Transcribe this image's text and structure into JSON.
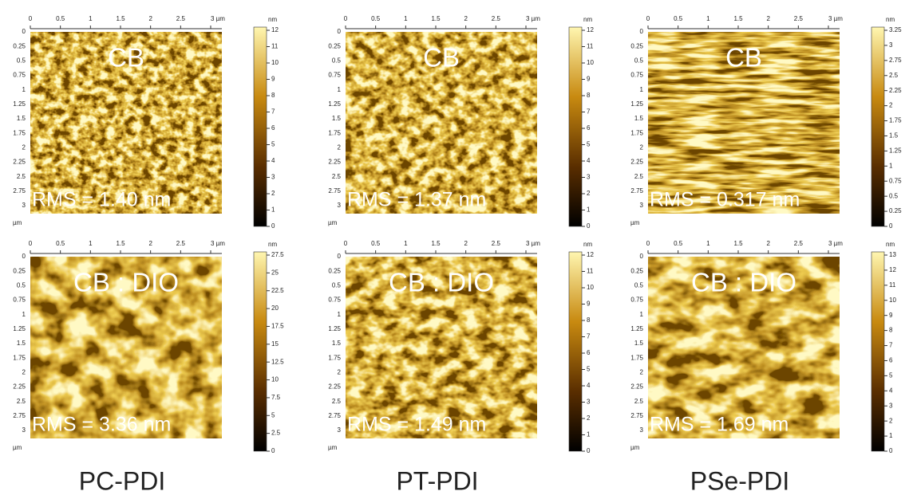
{
  "x_ticks": [
    "0",
    "0.5",
    "1",
    "1.5",
    "2",
    "2.5",
    "3 µm"
  ],
  "y_ticks": [
    "0",
    "0.25",
    "0.5",
    "0.75",
    "1",
    "1.25",
    "1.5",
    "1.75",
    "2",
    "2.25",
    "2.5",
    "2.75",
    "3"
  ],
  "y_unit": "µm",
  "columns": [
    "PC-PDI",
    "PT-PDI",
    "PSe-PDI"
  ],
  "panels": [
    {
      "condition": "CB",
      "rms": "RMS = 1.40 nm",
      "colorbar": {
        "unit": "nm",
        "ticks": [
          "0",
          "1",
          "2",
          "3",
          "4",
          "5",
          "6",
          "7",
          "8",
          "9",
          "10",
          "11",
          "12"
        ]
      }
    },
    {
      "condition": "CB",
      "rms": "RMS = 1.37 nm",
      "colorbar": {
        "unit": "nm",
        "ticks": [
          "0",
          "1",
          "2",
          "3",
          "4",
          "5",
          "6",
          "7",
          "8",
          "9",
          "10",
          "11",
          "12"
        ]
      }
    },
    {
      "condition": "CB",
      "rms": "RMS = 0.317 nm",
      "colorbar": {
        "unit": "nm",
        "ticks": [
          "0",
          "0.25",
          "0.5",
          "0.75",
          "1",
          "1.25",
          "1.5",
          "1.75",
          "2",
          "2.25",
          "2.5",
          "2.75",
          "3",
          "3.25"
        ]
      }
    },
    {
      "condition": "CB : DIO",
      "rms": "RMS = 3.36 nm",
      "colorbar": {
        "unit": "nm",
        "ticks": [
          "0",
          "2.5",
          "5",
          "7.5",
          "10",
          "12.5",
          "15",
          "17.5",
          "20",
          "22.5",
          "25",
          "27.5"
        ]
      }
    },
    {
      "condition": "CB : DIO",
      "rms": "RMS = 1.49 nm",
      "colorbar": {
        "unit": "nm",
        "ticks": [
          "0",
          "1",
          "2",
          "3",
          "4",
          "5",
          "6",
          "7",
          "8",
          "9",
          "10",
          "11",
          "12"
        ]
      }
    },
    {
      "condition": "CB : DIO",
      "rms": "RMS = 1.69 nm",
      "colorbar": {
        "unit": "nm",
        "ticks": [
          "0",
          "1",
          "2",
          "3",
          "4",
          "5",
          "6",
          "7",
          "8",
          "9",
          "10",
          "11",
          "12",
          "13"
        ]
      }
    }
  ]
}
